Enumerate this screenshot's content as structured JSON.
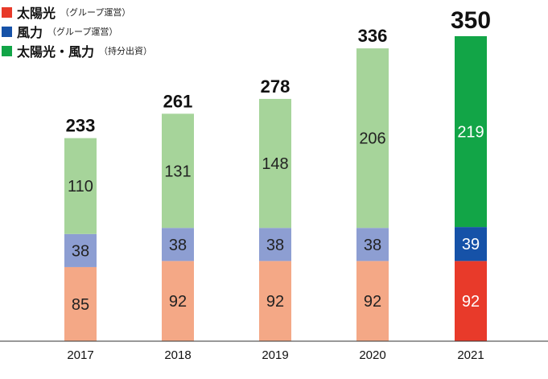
{
  "chart_data": {
    "type": "bar",
    "stacked": true,
    "categories": [
      "2017",
      "2018",
      "2019",
      "2020",
      "2021"
    ],
    "series": [
      {
        "name": "太陽光",
        "note": "（グループ運営）",
        "values": [
          85,
          92,
          92,
          92,
          92
        ],
        "colors": [
          "#f4a886",
          "#f4a886",
          "#f4a886",
          "#f4a886",
          "#e83a2a"
        ]
      },
      {
        "name": "風力",
        "note": "（グループ運営）",
        "values": [
          38,
          38,
          38,
          38,
          39
        ],
        "colors": [
          "#8d9ed2",
          "#8d9ed2",
          "#8d9ed2",
          "#8d9ed2",
          "#1652a8"
        ]
      },
      {
        "name": "太陽光・風力",
        "note": "（持分出資）",
        "values": [
          110,
          131,
          148,
          206,
          219
        ],
        "colors": [
          "#a6d49a",
          "#a6d49a",
          "#a6d49a",
          "#a6d49a",
          "#12a547"
        ]
      }
    ],
    "totals": [
      233,
      261,
      278,
      336,
      350
    ],
    "ylim": [
      0,
      350
    ],
    "grid": false,
    "legend_position": "top-left",
    "legend_colors": [
      "#e83a2a",
      "#1652a8",
      "#12a547"
    ]
  }
}
